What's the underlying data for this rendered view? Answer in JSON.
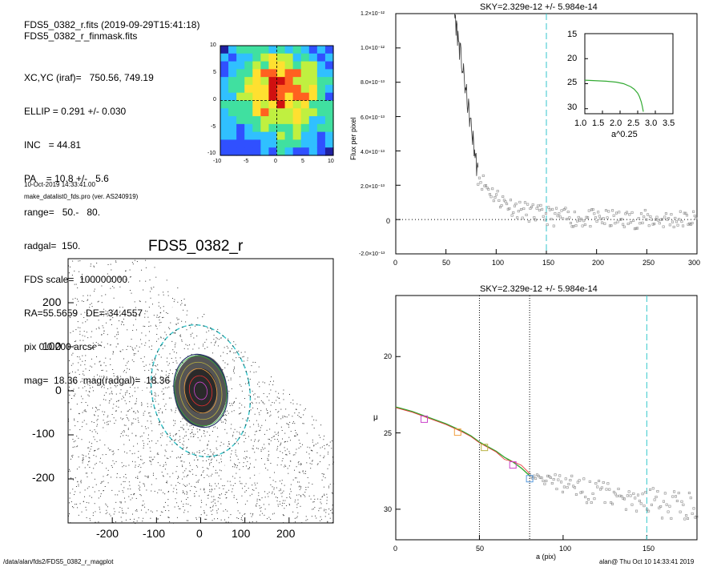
{
  "header": {
    "lines_top": [
      "FDS5_0382_r.fits  (2019-09-29T15:41:18)",
      "FDS5_0382_r_finmask.fits"
    ],
    "lines_params": [
      "XC,YC (iraf)=   750.56, 749.19",
      "ELLIP = 0.291 +/- 0.030",
      "INC   = 44.81",
      "PA    = 10.8 +/-   5.6",
      "range=   50.-   80.",
      "radgal=  150.",
      "FDS scale=  100000000.",
      "RA=55.5659   DE=-34.4557",
      "pix 0 0.200 arcsec",
      "mag=  18.36  mag(radgal)=  18.36"
    ],
    "date_line": "10-Oct-2019 14:33:41.00",
    "program_line": "make_datalist0_fds.pro (ver. AS240919)"
  },
  "footer": {
    "path": "/data/alan/fds2/FDS5_0382_r_magplot",
    "user_stamp": "alan@  Thu Oct 10 14:33:41 2019"
  },
  "colors": {
    "axis": "#000000",
    "data_points": "#888888",
    "profile_line": "#333333",
    "cyan": "#33c6cc",
    "green": "#33aa33",
    "red": "#e83030",
    "magenta": "#cc44cc",
    "orange": "#f0a040",
    "olive": "#b8b040",
    "blue_marker": "#5599dd",
    "ellipse_dark": "#223366"
  },
  "chart_data": [
    {
      "type": "heatmap",
      "name": "thumbnail",
      "xlim": [
        -10,
        10
      ],
      "ylim": [
        -10,
        10
      ],
      "xticks": [
        "-10",
        "-5",
        "0",
        "5",
        "10"
      ],
      "yticks": [
        "10",
        "5",
        "0",
        "-5",
        "-10"
      ],
      "colormap": [
        "#2020a0",
        "#3050ff",
        "#30c0ff",
        "#40e0a0",
        "#c0f040",
        "#ffe030",
        "#ff6020",
        "#d01010"
      ]
    },
    {
      "type": "scatter",
      "name": "flux_profile",
      "title": "SKY=2.329e-12 +/- 5.984e-14",
      "ylabel": "Flux per pixel",
      "xlim": [
        0,
        300
      ],
      "ylim": [
        -2e-13,
        1.2e-12
      ],
      "xticks": [
        "0",
        "50",
        "100",
        "150",
        "200",
        "250",
        "300"
      ],
      "yticks": [
        "1.2×10⁻¹²",
        "1.0×10⁻¹²",
        "8.0×10⁻¹³",
        "6.0×10⁻¹³",
        "4.0×10⁻¹³",
        "2.0×10⁻¹³",
        "0",
        "-2.0×10⁻¹³"
      ],
      "vline_x": 150,
      "zero_line_y": 0,
      "profile_x": [
        58,
        60,
        62,
        64,
        66,
        68,
        70,
        72,
        74,
        76,
        78,
        80,
        82
      ],
      "profile_y": [
        1.2e-12,
        1.12e-12,
        1.18e-12,
        1.05e-12,
        1.1e-12,
        9.5e-13,
        8.5e-13,
        7.5e-13,
        6.2e-13,
        5.5e-13,
        4.5e-13,
        3.5e-13,
        2.8e-13
      ],
      "inset": {
        "xlabel": "a^0.25",
        "xlim": [
          1.0,
          3.5
        ],
        "ylim": [
          15,
          31
        ],
        "xticks": [
          "1.0",
          "1.5",
          "2.0",
          "2.5",
          "3.0",
          "3.5"
        ],
        "yticks": [
          "15",
          "20",
          "25",
          "30"
        ],
        "curve_x": [
          1.0,
          1.3,
          1.6,
          1.9,
          2.1,
          2.3,
          2.4,
          2.5,
          2.55,
          2.6,
          2.63,
          2.66
        ],
        "curve_y": [
          24.3,
          24.4,
          24.5,
          24.7,
          25.0,
          25.6,
          26.1,
          26.9,
          27.6,
          28.6,
          29.5,
          30.6
        ]
      }
    },
    {
      "type": "scatter",
      "name": "image_map",
      "title": "FDS5_0382_r",
      "xlim": [
        -300,
        300
      ],
      "ylim": [
        -300,
        300
      ],
      "xticks": [
        "-200",
        "-100",
        "0",
        "100",
        "200"
      ],
      "yticks": [
        "200",
        "100",
        "0",
        "-100",
        "-200"
      ]
    },
    {
      "type": "line",
      "name": "surface_brightness",
      "title": "SKY=2.329e-12 +/- 5.984e-14",
      "xlabel": "a (pix)",
      "ylabel": "μ",
      "xlim": [
        0,
        180
      ],
      "ylim": [
        32,
        16
      ],
      "xticks": [
        "0",
        "50",
        "100",
        "150"
      ],
      "yticks": [
        "20",
        "25",
        "30"
      ],
      "vlines_dotted_x": [
        50,
        80
      ],
      "vline_dashed_x": 150,
      "profile_x": [
        0,
        10,
        20,
        30,
        40,
        45,
        50,
        55,
        60,
        65,
        70,
        75,
        80
      ],
      "profile_y": [
        23.3,
        23.6,
        24.0,
        24.4,
        24.9,
        25.2,
        25.6,
        25.9,
        26.2,
        26.6,
        26.9,
        27.3,
        27.8
      ],
      "markers": [
        {
          "x": 17,
          "y": 24.1,
          "color": "magenta"
        },
        {
          "x": 37,
          "y": 24.95,
          "color": "orange"
        },
        {
          "x": 53,
          "y": 25.95,
          "color": "olive"
        },
        {
          "x": 70,
          "y": 27.1,
          "color": "magenta"
        },
        {
          "x": 80,
          "y": 28.0,
          "color": "blue_marker"
        }
      ]
    }
  ]
}
